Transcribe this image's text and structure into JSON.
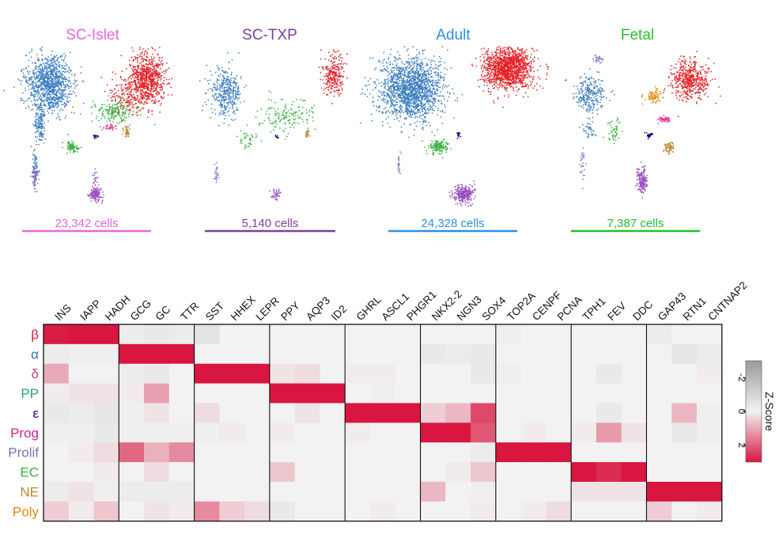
{
  "chart_data": [
    {
      "type": "scatter",
      "panels": [
        {
          "title": "SC-Islet",
          "cells": "23,342 cells",
          "color": "#e667e0"
        },
        {
          "title": "SC-TXP",
          "cells": "5,140 cells",
          "color": "#7b3fa0"
        },
        {
          "title": "Adult",
          "cells": "24,328 cells",
          "color": "#2e8fe0"
        },
        {
          "title": "Fetal",
          "cells": "7,387 cells",
          "color": "#22c02a"
        }
      ],
      "cluster_colors": {
        "beta": "#3a7dbf",
        "alpha": "#e32024",
        "delta": "#e0409a",
        "pp": "#2ea06a",
        "epsilon": "#0a1080",
        "prog": "#e8850a",
        "prolif": "#8a6fbf",
        "ec": "#3cb043",
        "ne": "#b8862b",
        "poly": "#9a4fbf"
      }
    },
    {
      "type": "heatmap",
      "gene_groups": [
        [
          "INS",
          "IAPP",
          "HADH"
        ],
        [
          "GCG",
          "GC",
          "TTR"
        ],
        [
          "SST",
          "HHEX",
          "LEPR"
        ],
        [
          "PPY",
          "AQP3",
          "ID2"
        ],
        [
          "GHRL",
          "ASCL1",
          "PHGR1"
        ],
        [
          "NKX2-2",
          "NGN3",
          "SOX4"
        ],
        [
          "TOP2A",
          "CENPF",
          "PCNA"
        ],
        [
          "TPH1",
          "FEV",
          "DDC"
        ],
        [
          "GAP43",
          "RTN1",
          "CNTNAP2"
        ]
      ],
      "rows": [
        {
          "label": "β",
          "color": "#d81e3a"
        },
        {
          "label": "α",
          "color": "#2f6fb0"
        },
        {
          "label": "δ",
          "color": "#c0408f"
        },
        {
          "label": "PP",
          "color": "#2ea06a"
        },
        {
          "label": "ε",
          "color": "#0a1080"
        },
        {
          "label": "Prog",
          "color": "#d1208a"
        },
        {
          "label": "Prolif",
          "color": "#7b6fb8"
        },
        {
          "label": "EC",
          "color": "#3cb043"
        },
        {
          "label": "NE",
          "color": "#b8862b"
        },
        {
          "label": "Poly",
          "color": "#e8850a"
        }
      ],
      "values": [
        [
          2.9,
          3.0,
          3.0,
          -0.2,
          -0.3,
          -0.2,
          -0.5,
          0,
          0,
          0,
          0,
          0,
          0,
          0,
          0,
          0,
          0,
          0,
          -0.1,
          0,
          0,
          0,
          0,
          0,
          -0.2,
          0,
          0
        ],
        [
          -0.2,
          -0.1,
          -0.1,
          3.0,
          3.0,
          3.0,
          0,
          0,
          0,
          0,
          0,
          0,
          0,
          0,
          0,
          -0.3,
          -0.2,
          -0.3,
          0,
          0,
          0,
          0,
          0,
          0,
          0,
          -0.4,
          -0.2
        ],
        [
          1.0,
          0,
          0,
          -0.2,
          -0.3,
          0,
          3.0,
          3.0,
          3.0,
          0.2,
          0.3,
          0,
          0.1,
          0.1,
          0,
          0,
          0,
          -0.3,
          -0.1,
          0,
          0,
          0,
          -0.3,
          0,
          0,
          0,
          0.1
        ],
        [
          0.1,
          0.2,
          0.2,
          0.1,
          1.1,
          0,
          0,
          0,
          0,
          3.0,
          3.0,
          3.0,
          0,
          -0.1,
          0,
          0,
          0,
          0,
          0,
          0,
          0,
          0,
          0,
          0,
          0,
          0,
          0
        ],
        [
          -0.3,
          -0.2,
          -0.4,
          -0.1,
          0.2,
          0,
          0.3,
          0,
          0,
          0,
          0.2,
          0,
          3.0,
          3.0,
          3.0,
          0.5,
          0.8,
          2.3,
          0,
          0,
          0,
          0,
          -0.3,
          0,
          0,
          0.8,
          -0.1
        ],
        [
          -0.1,
          -0.1,
          -0.3,
          -0.1,
          -0.1,
          -0.1,
          -0.1,
          0.1,
          0,
          0.1,
          0,
          0,
          0.1,
          0,
          0,
          3.0,
          3.0,
          2.1,
          0,
          0.1,
          0,
          0.1,
          1.2,
          0.2,
          0,
          -0.3,
          -0.1
        ],
        [
          0,
          0.1,
          0.3,
          1.9,
          0.9,
          1.4,
          0,
          0,
          0,
          0,
          0,
          0,
          0,
          0,
          0,
          0,
          0,
          -0.2,
          3.0,
          3.0,
          3.0,
          0,
          0,
          0,
          0,
          0,
          0
        ],
        [
          0,
          0,
          0.1,
          0,
          0.3,
          0,
          0,
          0,
          0,
          0.6,
          0,
          0,
          0,
          0,
          0,
          0,
          0.1,
          0.6,
          0,
          0,
          0,
          3.0,
          2.7,
          3.0,
          0,
          0,
          0
        ],
        [
          -0.2,
          0.2,
          -0.1,
          -0.2,
          -0.2,
          -0.2,
          0,
          0,
          0,
          0,
          0,
          0,
          0,
          0,
          0,
          0.8,
          0,
          -0.1,
          0,
          0,
          0,
          0.2,
          0.2,
          0.2,
          3.0,
          3.0,
          3.0
        ],
        [
          0.5,
          0.1,
          0.6,
          0,
          0.2,
          0.1,
          1.4,
          0.5,
          0.3,
          -0.3,
          0,
          0,
          0,
          0.1,
          0,
          0,
          0,
          0.1,
          0,
          0.1,
          0.3,
          0,
          0,
          0,
          0.5,
          0,
          0.1
        ]
      ],
      "colorbar": {
        "title": "Z-Score",
        "range": [
          -3,
          3
        ],
        "ticks": [
          "-2",
          "0",
          "2"
        ],
        "tick_values": [
          -2,
          0,
          2
        ],
        "low_color": "#9a9a9a",
        "mid_color": "#f2f2f2",
        "high_color": "#d8163f"
      }
    }
  ]
}
